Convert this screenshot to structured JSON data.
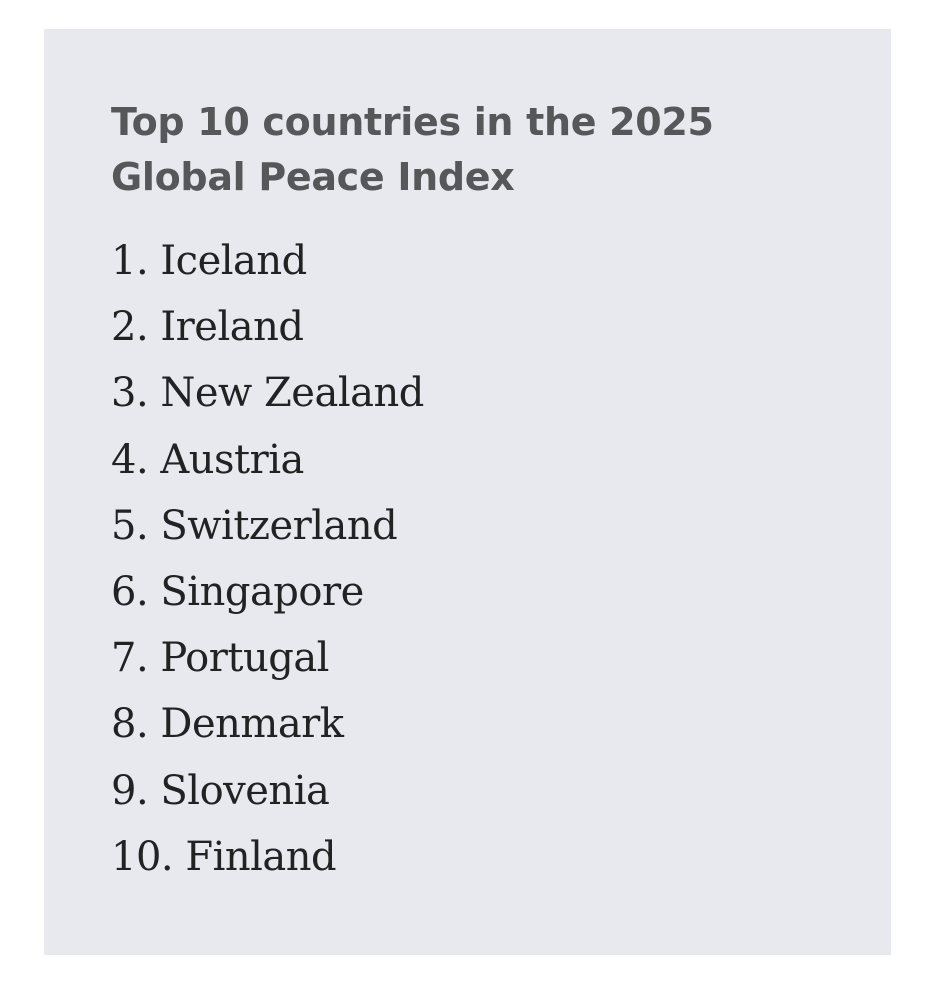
{
  "card": {
    "title_line1": "Top 10 countries in the 2025",
    "title_line2": "Global Peace Index",
    "items": [
      "1. Iceland",
      "2. Ireland",
      "3. New Zealand",
      "4. Austria",
      "5. Switzerland",
      "6. Singapore",
      "7. Portugal",
      "8. Denmark",
      "9. Slovenia",
      "10. Finland"
    ]
  },
  "colors": {
    "card_background": "#e7e9ef",
    "title_text": "#555759",
    "list_text": "#222222",
    "page_background": "#ffffff"
  }
}
